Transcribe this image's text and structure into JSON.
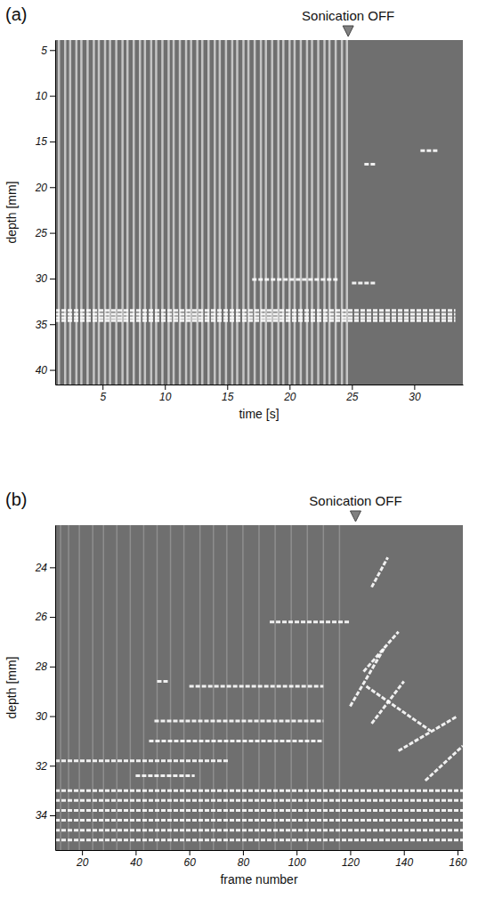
{
  "chart_data": [
    {
      "type": "mmode",
      "panel_label": "(a)",
      "x_label": "time [s]",
      "y_label": "depth [mm]",
      "color": "#ffffff",
      "xlim": [
        1.2,
        33.9
      ],
      "xticks": [
        5,
        10,
        15,
        20,
        25,
        30
      ],
      "ylim": [
        3.9,
        41.6
      ],
      "yticks": [
        5,
        10,
        15,
        20,
        25,
        30,
        35,
        40
      ],
      "annotation": {
        "text": "Sonication OFF",
        "x": 24.7
      },
      "stripe_depth": [
        3.9,
        41.6
      ],
      "stripes": [
        1.5,
        2.0,
        2.4,
        2.9,
        3.3,
        3.8,
        4.3,
        4.7,
        5.2,
        5.6,
        6.1,
        6.6,
        7.0,
        7.5,
        8.0,
        8.4,
        8.9,
        9.3,
        9.8,
        10.3,
        10.7,
        11.2,
        11.7,
        12.1,
        12.6,
        13.0,
        13.5,
        14.0,
        14.4,
        14.9,
        15.4,
        15.8,
        16.3,
        16.7,
        17.2,
        17.7,
        18.1,
        18.6,
        19.1,
        19.5,
        20.0,
        20.4,
        20.9,
        21.4,
        21.8,
        22.3,
        22.8,
        23.2,
        23.7,
        24.2,
        24.6
      ],
      "segments": [
        {
          "x": [
            1.2,
            33.3
          ],
          "y": [
            33.5,
            33.5
          ]
        },
        {
          "x": [
            1.2,
            33.3
          ],
          "y": [
            33.9,
            33.9
          ]
        },
        {
          "x": [
            1.2,
            33.3
          ],
          "y": [
            34.3,
            34.3
          ]
        },
        {
          "x": [
            1.2,
            33.3
          ],
          "y": [
            34.6,
            34.6
          ]
        },
        {
          "x": [
            17.0,
            24.0
          ],
          "y": [
            30.1,
            30.1
          ]
        },
        {
          "x": [
            30.5,
            32.0
          ],
          "y": [
            16.0,
            16.0
          ]
        },
        {
          "x": [
            26.0,
            27.0
          ],
          "y": [
            17.5,
            17.5
          ]
        },
        {
          "x": [
            25.0,
            27.0
          ],
          "y": [
            30.5,
            30.5
          ]
        }
      ]
    },
    {
      "type": "mmode",
      "panel_label": "(b)",
      "x_label": "frame number",
      "y_label": "depth [mm]",
      "color": "#ffffff",
      "xlim": [
        10,
        162
      ],
      "xticks": [
        20,
        40,
        60,
        80,
        100,
        120,
        140,
        160
      ],
      "ylim": [
        22.3,
        35.4
      ],
      "yticks": [
        24,
        26,
        28,
        30,
        32,
        34
      ],
      "annotation": {
        "text": "Sonication OFF",
        "x": 122
      },
      "stripe_depth": [
        22.3,
        35.4
      ],
      "stripes": [
        12,
        15,
        19,
        24,
        28,
        33,
        38,
        43,
        48,
        53,
        58,
        64,
        69,
        74,
        80,
        86,
        92,
        98,
        104,
        110,
        116
      ],
      "segments": [
        {
          "x": [
            47,
            110
          ],
          "y": [
            30.2,
            30.2
          ]
        },
        {
          "x": [
            90,
            120
          ],
          "y": [
            26.2,
            26.2
          ]
        },
        {
          "x": [
            45,
            110
          ],
          "y": [
            31.0,
            31.0
          ]
        },
        {
          "x": [
            10,
            75
          ],
          "y": [
            31.8,
            31.8
          ]
        },
        {
          "x": [
            40,
            62
          ],
          "y": [
            32.4,
            32.4
          ]
        },
        {
          "x": [
            48,
            52
          ],
          "y": [
            28.6,
            28.6
          ]
        },
        {
          "x": [
            60,
            110
          ],
          "y": [
            28.8,
            28.8
          ]
        },
        {
          "x": [
            120,
            133
          ],
          "y": [
            29.6,
            27.2
          ]
        },
        {
          "x": [
            125,
            138
          ],
          "y": [
            28.2,
            26.6
          ]
        },
        {
          "x": [
            128,
            134
          ],
          "y": [
            24.8,
            23.6
          ]
        },
        {
          "x": [
            128,
            140
          ],
          "y": [
            30.3,
            28.6
          ]
        },
        {
          "x": [
            138,
            160
          ],
          "y": [
            31.4,
            30.0
          ]
        },
        {
          "x": [
            148,
            162
          ],
          "y": [
            32.6,
            31.2
          ]
        },
        {
          "x": [
            126,
            150
          ],
          "y": [
            28.8,
            30.6
          ]
        },
        {
          "x": [
            10,
            162
          ],
          "y": [
            33.0,
            33.0
          ]
        },
        {
          "x": [
            10,
            162
          ],
          "y": [
            33.4,
            33.4
          ]
        },
        {
          "x": [
            10,
            162
          ],
          "y": [
            33.8,
            33.8
          ]
        },
        {
          "x": [
            10,
            162
          ],
          "y": [
            34.2,
            34.2
          ]
        },
        {
          "x": [
            10,
            162
          ],
          "y": [
            34.6,
            34.6
          ]
        },
        {
          "x": [
            10,
            162
          ],
          "y": [
            35.0,
            35.0
          ]
        }
      ]
    }
  ]
}
